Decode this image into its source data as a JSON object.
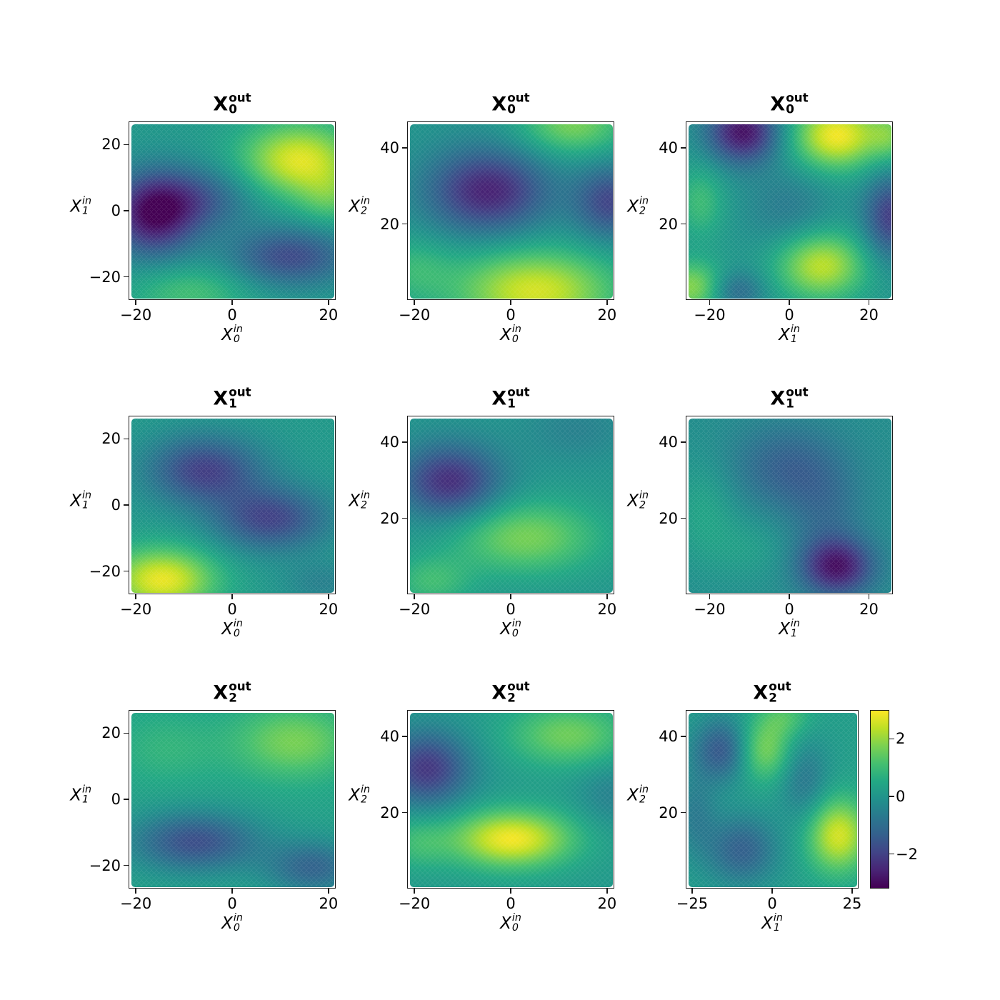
{
  "figure": {
    "background": "#ffffff",
    "vmin": -3.2,
    "vmax": 3.0,
    "colormap": "viridis",
    "colormap_stops": [
      {
        "t": 0.0,
        "c": [
          68,
          1,
          84
        ]
      },
      {
        "t": 0.1,
        "c": [
          72,
          36,
          117
        ]
      },
      {
        "t": 0.2,
        "c": [
          65,
          68,
          135
        ]
      },
      {
        "t": 0.3,
        "c": [
          52,
          96,
          141
        ]
      },
      {
        "t": 0.4,
        "c": [
          42,
          120,
          142
        ]
      },
      {
        "t": 0.5,
        "c": [
          33,
          145,
          140
        ]
      },
      {
        "t": 0.6,
        "c": [
          34,
          168,
          132
        ]
      },
      {
        "t": 0.7,
        "c": [
          68,
          191,
          112
        ]
      },
      {
        "t": 0.8,
        "c": [
          122,
          209,
          81
        ]
      },
      {
        "t": 0.9,
        "c": [
          189,
          223,
          38
        ]
      },
      {
        "t": 1.0,
        "c": [
          253,
          231,
          37
        ]
      }
    ]
  },
  "colorbar": {
    "ticks": [
      {
        "value": 2,
        "label": "2"
      },
      {
        "value": 0,
        "label": "0"
      },
      {
        "value": -2,
        "label": "−2"
      }
    ]
  },
  "chart_data": [
    {
      "type": "heatmap",
      "title": {
        "text": "X",
        "sub": "0",
        "sup": "out"
      },
      "xlabel": {
        "text": "X",
        "sub": "0",
        "sup": "in"
      },
      "ylabel": {
        "text": "X",
        "sub": "1",
        "sup": "in"
      },
      "xlim": [
        -21.5,
        21.5
      ],
      "ylim": [
        -27,
        27
      ],
      "xticks": [
        {
          "value": -20,
          "label": "−20"
        },
        {
          "value": 0,
          "label": "0"
        },
        {
          "value": 20,
          "label": "20"
        }
      ],
      "yticks": [
        {
          "value": -20,
          "label": "−20"
        },
        {
          "value": 0,
          "label": "0"
        },
        {
          "value": 20,
          "label": "20"
        }
      ],
      "field": {
        "base": 0.1,
        "blobs": [
          {
            "x": -17,
            "y": -1,
            "sx": 6.5,
            "sy": 9,
            "a": -3.0
          },
          {
            "x": -7,
            "y": 4,
            "sx": 8,
            "sy": 7,
            "a": -1.4
          },
          {
            "x": 14,
            "y": 16,
            "sx": 8.5,
            "sy": 8,
            "a": 2.6
          },
          {
            "x": 21,
            "y": 4,
            "sx": 5,
            "sy": 6,
            "a": 1.0
          },
          {
            "x": 12,
            "y": -14,
            "sx": 9,
            "sy": 6.5,
            "a": -1.9
          },
          {
            "x": -9,
            "y": -25,
            "sx": 9,
            "sy": 6,
            "a": 1.0
          }
        ]
      }
    },
    {
      "type": "heatmap",
      "title": {
        "text": "X",
        "sub": "0",
        "sup": "out"
      },
      "xlabel": {
        "text": "X",
        "sub": "0",
        "sup": "in"
      },
      "ylabel": {
        "text": "X",
        "sub": "2",
        "sup": "in"
      },
      "xlim": [
        -21.5,
        21.5
      ],
      "ylim": [
        0,
        47
      ],
      "xticks": [
        {
          "value": -20,
          "label": "−20"
        },
        {
          "value": 0,
          "label": "0"
        },
        {
          "value": 20,
          "label": "20"
        }
      ],
      "yticks": [
        {
          "value": 20,
          "label": "20"
        },
        {
          "value": 40,
          "label": "40"
        }
      ],
      "field": {
        "base": 0.0,
        "blobs": [
          {
            "x": -5,
            "y": 29,
            "sx": 9,
            "sy": 8,
            "a": -2.6
          },
          {
            "x": 21,
            "y": 26,
            "sx": 5.5,
            "sy": 7,
            "a": -1.9
          },
          {
            "x": 5,
            "y": 2,
            "sx": 12,
            "sy": 8,
            "a": 2.6
          },
          {
            "x": 13,
            "y": 47,
            "sx": 8,
            "sy": 6,
            "a": 1.7
          },
          {
            "x": -21,
            "y": 8,
            "sx": 6,
            "sy": 6,
            "a": 0.8
          }
        ]
      }
    },
    {
      "type": "heatmap",
      "title": {
        "text": "X",
        "sub": "0",
        "sup": "out"
      },
      "xlabel": {
        "text": "X",
        "sub": "1",
        "sup": "in"
      },
      "ylabel": {
        "text": "X",
        "sub": "2",
        "sup": "in"
      },
      "xlim": [
        -26,
        26
      ],
      "ylim": [
        0,
        47
      ],
      "xticks": [
        {
          "value": -20,
          "label": "−20"
        },
        {
          "value": 0,
          "label": "0"
        },
        {
          "value": 20,
          "label": "20"
        }
      ],
      "yticks": [
        {
          "value": 20,
          "label": "20"
        },
        {
          "value": 40,
          "label": "40"
        }
      ],
      "field": {
        "base": 0.0,
        "blobs": [
          {
            "x": -12,
            "y": 45,
            "sx": 6.5,
            "sy": 6,
            "a": -2.9
          },
          {
            "x": 12,
            "y": 44,
            "sx": 8,
            "sy": 6.5,
            "a": 2.9
          },
          {
            "x": 26,
            "y": 44,
            "sx": 4,
            "sy": 5,
            "a": 1.2
          },
          {
            "x": 26,
            "y": 22,
            "sx": 5,
            "sy": 8,
            "a": -2.1
          },
          {
            "x": 8,
            "y": 9,
            "sx": 8,
            "sy": 6.5,
            "a": 2.4
          },
          {
            "x": -25,
            "y": 3,
            "sx": 6,
            "sy": 5,
            "a": 1.9
          },
          {
            "x": -14,
            "y": 2,
            "sx": 5,
            "sy": 4,
            "a": -1.2
          },
          {
            "x": -23,
            "y": 26,
            "sx": 4.5,
            "sy": 7,
            "a": 1.0
          },
          {
            "x": 0,
            "y": 24,
            "sx": 8,
            "sy": 8,
            "a": -0.7
          }
        ]
      }
    },
    {
      "type": "heatmap",
      "title": {
        "text": "X",
        "sub": "1",
        "sup": "out"
      },
      "xlabel": {
        "text": "X",
        "sub": "0",
        "sup": "in"
      },
      "ylabel": {
        "text": "X",
        "sub": "1",
        "sup": "in"
      },
      "xlim": [
        -21.5,
        21.5
      ],
      "ylim": [
        -27,
        27
      ],
      "xticks": [
        {
          "value": -20,
          "label": "−20"
        },
        {
          "value": 0,
          "label": "0"
        },
        {
          "value": 20,
          "label": "20"
        }
      ],
      "yticks": [
        {
          "value": -20,
          "label": "−20"
        },
        {
          "value": 0,
          "label": "0"
        },
        {
          "value": 20,
          "label": "20"
        }
      ],
      "field": {
        "base": 0.1,
        "blobs": [
          {
            "x": -6,
            "y": 11,
            "sx": 8.5,
            "sy": 7.5,
            "a": -2.1
          },
          {
            "x": 8,
            "y": -4,
            "sx": 8.5,
            "sy": 7,
            "a": -2.0
          },
          {
            "x": -15,
            "y": -23,
            "sx": 8,
            "sy": 7,
            "a": 2.7
          },
          {
            "x": 19,
            "y": -24,
            "sx": 6,
            "sy": 5,
            "a": -0.6
          }
        ]
      }
    },
    {
      "type": "heatmap",
      "title": {
        "text": "X",
        "sub": "1",
        "sup": "out"
      },
      "xlabel": {
        "text": "X",
        "sub": "0",
        "sup": "in"
      },
      "ylabel": {
        "text": "X",
        "sub": "2",
        "sup": "in"
      },
      "xlim": [
        -21.5,
        21.5
      ],
      "ylim": [
        0,
        47
      ],
      "xticks": [
        {
          "value": -20,
          "label": "−20"
        },
        {
          "value": 0,
          "label": "0"
        },
        {
          "value": 20,
          "label": "20"
        }
      ],
      "yticks": [
        {
          "value": 20,
          "label": "20"
        },
        {
          "value": 40,
          "label": "40"
        }
      ],
      "field": {
        "base": 0.0,
        "blobs": [
          {
            "x": -13,
            "y": 30,
            "sx": 7.5,
            "sy": 7,
            "a": -2.4
          },
          {
            "x": 3,
            "y": 15,
            "sx": 11,
            "sy": 7,
            "a": 1.7
          },
          {
            "x": -17,
            "y": 3,
            "sx": 6,
            "sy": 5,
            "a": 1.0
          },
          {
            "x": 14,
            "y": 44,
            "sx": 8,
            "sy": 6,
            "a": -0.5
          }
        ]
      }
    },
    {
      "type": "heatmap",
      "title": {
        "text": "X",
        "sub": "1",
        "sup": "out"
      },
      "xlabel": {
        "text": "X",
        "sub": "1",
        "sup": "in"
      },
      "ylabel": {
        "text": "X",
        "sub": "2",
        "sup": "in"
      },
      "xlim": [
        -26,
        26
      ],
      "ylim": [
        0,
        47
      ],
      "xticks": [
        {
          "value": -20,
          "label": "−20"
        },
        {
          "value": 0,
          "label": "0"
        },
        {
          "value": 20,
          "label": "20"
        }
      ],
      "yticks": [
        {
          "value": 20,
          "label": "20"
        },
        {
          "value": 40,
          "label": "40"
        }
      ],
      "field": {
        "base": -0.2,
        "blobs": [
          {
            "x": 12,
            "y": 7,
            "sx": 6.5,
            "sy": 5.5,
            "a": -2.6
          },
          {
            "x": -1,
            "y": 34,
            "sx": 10,
            "sy": 8,
            "a": -1.1
          },
          {
            "x": 9,
            "y": 22,
            "sx": 7,
            "sy": 9,
            "a": -0.7
          },
          {
            "x": -22,
            "y": 22,
            "sx": 6,
            "sy": 10,
            "a": 0.6
          },
          {
            "x": -10,
            "y": 12,
            "sx": 7,
            "sy": 6,
            "a": 0.4
          }
        ]
      }
    },
    {
      "type": "heatmap",
      "title": {
        "text": "X",
        "sub": "2",
        "sup": "out"
      },
      "xlabel": {
        "text": "X",
        "sub": "0",
        "sup": "in"
      },
      "ylabel": {
        "text": "X",
        "sub": "1",
        "sup": "in"
      },
      "xlim": [
        -21.5,
        21.5
      ],
      "ylim": [
        -27,
        27
      ],
      "xticks": [
        {
          "value": -20,
          "label": "−20"
        },
        {
          "value": 0,
          "label": "0"
        },
        {
          "value": 20,
          "label": "20"
        }
      ],
      "yticks": [
        {
          "value": -20,
          "label": "−20"
        },
        {
          "value": 0,
          "label": "0"
        },
        {
          "value": 20,
          "label": "20"
        }
      ],
      "field": {
        "base": 0.3,
        "blobs": [
          {
            "x": -8,
            "y": -13,
            "sx": 9.5,
            "sy": 6.5,
            "a": -2.0
          },
          {
            "x": 13,
            "y": 18,
            "sx": 9,
            "sy": 8,
            "a": 1.4
          },
          {
            "x": 17,
            "y": -21,
            "sx": 7,
            "sy": 6,
            "a": -1.5
          },
          {
            "x": -14,
            "y": 16,
            "sx": 8,
            "sy": 8,
            "a": 0.5
          }
        ]
      }
    },
    {
      "type": "heatmap",
      "title": {
        "text": "X",
        "sub": "2",
        "sup": "out"
      },
      "xlabel": {
        "text": "X",
        "sub": "0",
        "sup": "in"
      },
      "ylabel": {
        "text": "X",
        "sub": "2",
        "sup": "in"
      },
      "xlim": [
        -21.5,
        21.5
      ],
      "ylim": [
        0,
        47
      ],
      "xticks": [
        {
          "value": -20,
          "label": "−20"
        },
        {
          "value": 0,
          "label": "0"
        },
        {
          "value": 20,
          "label": "20"
        }
      ],
      "yticks": [
        {
          "value": 20,
          "label": "20"
        },
        {
          "value": 40,
          "label": "40"
        }
      ],
      "field": {
        "base": 0.1,
        "blobs": [
          {
            "x": -18,
            "y": 32,
            "sx": 6.5,
            "sy": 7,
            "a": -2.3
          },
          {
            "x": 0,
            "y": 13,
            "sx": 9,
            "sy": 5.5,
            "a": 2.8
          },
          {
            "x": 12,
            "y": 41,
            "sx": 9,
            "sy": 6,
            "a": 1.5
          },
          {
            "x": -20,
            "y": 12,
            "sx": 5,
            "sy": 5,
            "a": 0.8
          },
          {
            "x": 21,
            "y": 25,
            "sx": 5,
            "sy": 6,
            "a": -0.6
          }
        ]
      }
    },
    {
      "type": "heatmap",
      "title": {
        "text": "X",
        "sub": "2",
        "sup": "out"
      },
      "xlabel": {
        "text": "X",
        "sub": "1",
        "sup": "in"
      },
      "ylabel": {
        "text": "X",
        "sub": "2",
        "sup": "in"
      },
      "xlim": [
        -27,
        27
      ],
      "ylim": [
        0,
        47
      ],
      "xticks": [
        {
          "value": -25,
          "label": "−25"
        },
        {
          "value": 0,
          "label": "0"
        },
        {
          "value": 25,
          "label": "25"
        }
      ],
      "yticks": [
        {
          "value": 20,
          "label": "20"
        },
        {
          "value": 40,
          "label": "40"
        }
      ],
      "field": {
        "base": 0.2,
        "blobs": [
          {
            "x": -16,
            "y": 37,
            "sx": 6.5,
            "sy": 6,
            "a": -1.8
          },
          {
            "x": -3,
            "y": 37,
            "sx": 6.5,
            "sy": 6,
            "a": 1.6
          },
          {
            "x": 21,
            "y": 14,
            "sx": 7,
            "sy": 7,
            "a": 2.4
          },
          {
            "x": -10,
            "y": 10,
            "sx": 8,
            "sy": 6.5,
            "a": -1.5
          },
          {
            "x": 10,
            "y": 29,
            "sx": 5.5,
            "sy": 8,
            "a": -1.0
          },
          {
            "x": -25,
            "y": 20,
            "sx": 5,
            "sy": 8,
            "a": -0.8
          },
          {
            "x": 4,
            "y": 46,
            "sx": 6,
            "sy": 4,
            "a": 0.9
          }
        ]
      }
    }
  ]
}
